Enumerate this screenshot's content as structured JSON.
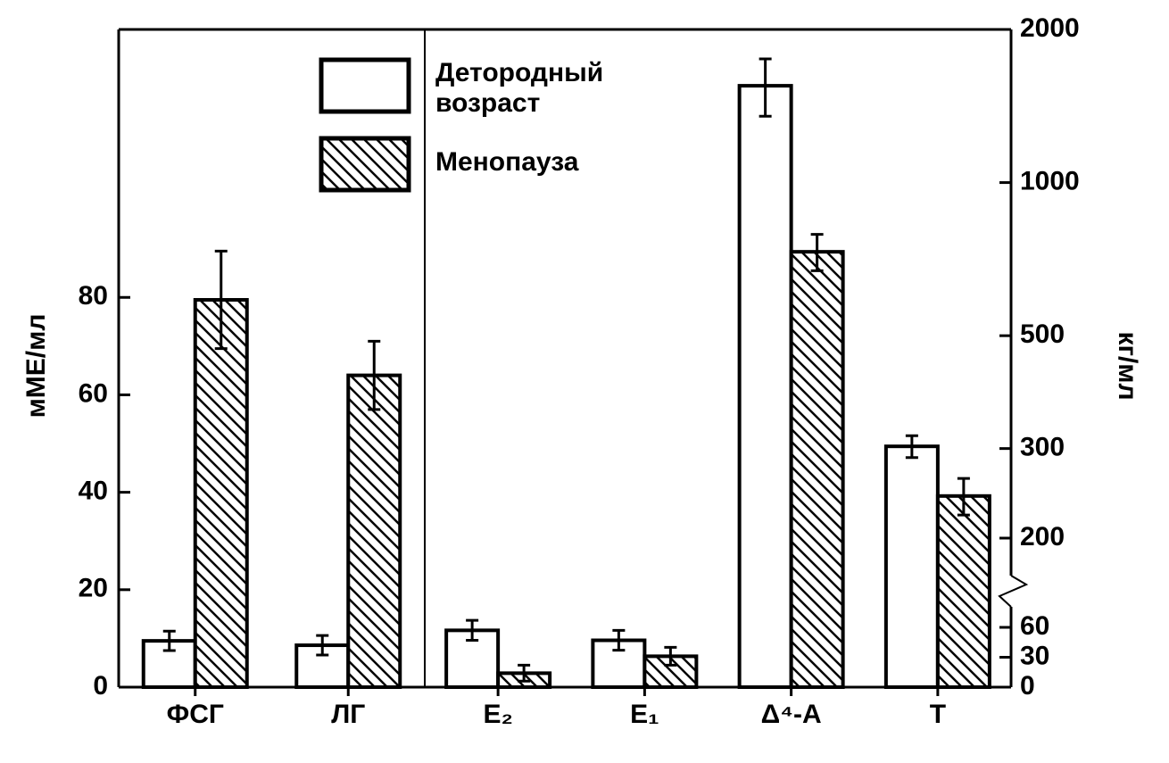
{
  "chart_data": {
    "type": "bar",
    "y_label": "мМЕ/мл",
    "y2_label": "кг/мл",
    "categories": [
      "ФСГ",
      "ЛГ",
      "E₂",
      "E₁",
      "Δ⁴-A",
      "T"
    ],
    "category_axis": [
      "y",
      "y",
      "y2",
      "y2",
      "y2",
      "y2"
    ],
    "series": [
      {
        "name": "Детородный возраст",
        "fill": "plain",
        "values": [
          9.5,
          8.6,
          57,
          47,
          1550,
          303
        ],
        "errors": [
          2,
          2,
          10,
          10,
          200,
          15
        ]
      },
      {
        "name": "Менопауза",
        "fill": "hatch",
        "values": [
          79.5,
          64,
          14,
          31,
          731,
          242
        ],
        "errors": [
          10,
          7,
          8,
          9,
          60,
          20
        ]
      }
    ],
    "ylim": [
      0,
      135
    ],
    "yticks": [
      0,
      20,
      40,
      60,
      80
    ],
    "y2lim": [
      0,
      2000
    ],
    "y2ticks": [
      0,
      30,
      60,
      200,
      300,
      500,
      1000,
      2000
    ],
    "y2scale": "broken",
    "y2_lower": [
      0,
      60
    ],
    "y2_upper_log": [
      200,
      2000
    ]
  }
}
